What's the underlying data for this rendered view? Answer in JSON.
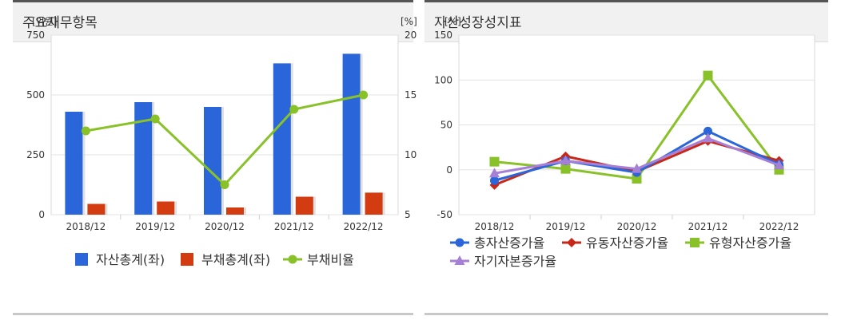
{
  "left_panel": {
    "title": "주요재무항목"
  },
  "right_panel": {
    "title": "자산성장성지표"
  },
  "colors": {
    "asset_bar": "#2a66d9",
    "liability_bar": "#d23c10",
    "ratio_line": "#88c128",
    "total_asset_growth": "#2a66d9",
    "current_asset_growth": "#c8281a",
    "tangible_asset_growth": "#88c128",
    "equity_growth": "#a680d6"
  },
  "chart_data": [
    {
      "type": "bar",
      "categories": [
        "2018/12",
        "2019/12",
        "2020/12",
        "2021/12",
        "2022/12"
      ],
      "left_unit": "[억원]",
      "right_unit": "[%]",
      "ylim_left": [
        0,
        750
      ],
      "yticks_left": [
        0,
        250,
        500,
        750
      ],
      "ylim_right": [
        5,
        20
      ],
      "yticks_right": [
        5,
        10,
        15,
        20
      ],
      "grid": true,
      "legend_position": "bottom",
      "series": [
        {
          "name": "자산총계(좌)",
          "type": "bar",
          "axis": "left",
          "values": [
            430,
            470,
            450,
            632,
            672
          ]
        },
        {
          "name": "부채총계(좌)",
          "type": "bar",
          "axis": "left",
          "values": [
            45,
            55,
            30,
            75,
            92
          ]
        },
        {
          "name": "부채비율",
          "type": "line",
          "axis": "right",
          "values": [
            12.0,
            13.0,
            7.5,
            13.8,
            15.0
          ]
        }
      ]
    },
    {
      "type": "line",
      "categories": [
        "2018/12",
        "2019/12",
        "2020/12",
        "2021/12",
        "2022/12"
      ],
      "y_unit": "[%]",
      "ylim": [
        -50,
        150
      ],
      "yticks": [
        -50,
        0,
        50,
        100,
        150
      ],
      "grid": true,
      "legend_position": "bottom",
      "series": [
        {
          "name": "총자산증가율",
          "marker": "circle",
          "values": [
            -12,
            10,
            -3,
            43,
            6
          ]
        },
        {
          "name": "유동자산증가율",
          "marker": "diamond",
          "values": [
            -17,
            15,
            -2,
            32,
            10
          ]
        },
        {
          "name": "유형자산증가율",
          "marker": "square",
          "values": [
            9,
            1,
            -10,
            105,
            0
          ]
        },
        {
          "name": "자기자본증가율",
          "marker": "triangle",
          "values": [
            -4,
            10,
            1,
            35,
            5
          ]
        }
      ]
    }
  ]
}
